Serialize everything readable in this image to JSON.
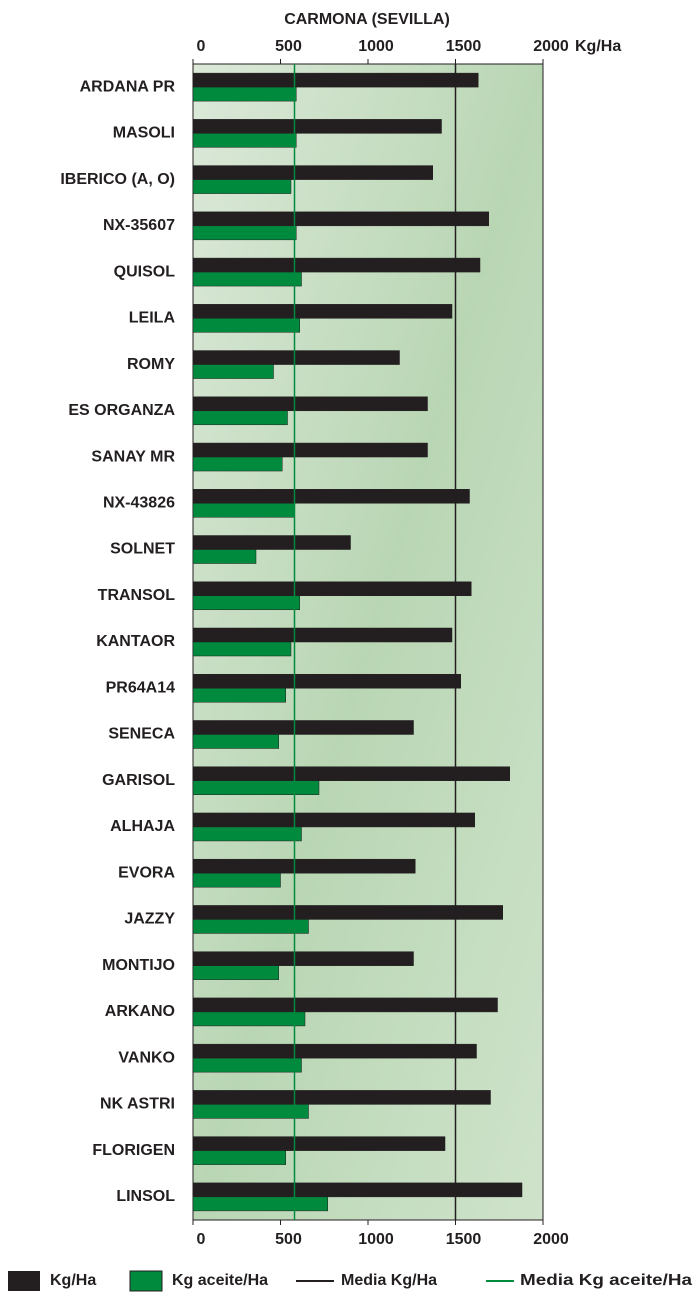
{
  "chart_data": {
    "type": "hbar",
    "title": "CARMONA (SEVILLA)",
    "x_unit": "Kg/Ha",
    "categories": [
      "ARDANA PR",
      "MASOLI",
      "IBERICO (A, O)",
      "NX-35607",
      "QUISOL",
      "LEILA",
      "ROMY",
      "ES ORGANZA",
      "SANAY MR",
      "NX-43826",
      "SOLNET",
      "TRANSOL",
      "KANTAOR",
      "PR64A14",
      "SENECA",
      "GARISOL",
      "ALHAJA",
      "EVORA",
      "JAZZY",
      "MONTIJO",
      "ARKANO",
      "VANKO",
      "NK ASTRI",
      "FLORIGEN",
      "LINSOL"
    ],
    "series": [
      {
        "name": "Kg/Ha",
        "color": "#231f20",
        "values": [
          1630,
          1420,
          1370,
          1690,
          1640,
          1480,
          1180,
          1340,
          1340,
          1580,
          900,
          1590,
          1480,
          1530,
          1260,
          1810,
          1610,
          1270,
          1770,
          1260,
          1740,
          1620,
          1700,
          1440,
          1880
        ]
      },
      {
        "name": "Kg aceite/Ha",
        "color": "#008a3e",
        "values": [
          590,
          590,
          560,
          590,
          620,
          610,
          460,
          540,
          510,
          580,
          360,
          610,
          560,
          530,
          490,
          720,
          620,
          500,
          660,
          490,
          640,
          620,
          660,
          530,
          770
        ]
      }
    ],
    "reference_lines": [
      {
        "name": "Media Kg/Ha",
        "value": 1500,
        "color": "#231f20"
      },
      {
        "name": "Media Kg aceite/Ha",
        "value": 580,
        "color": "#008a3e"
      }
    ],
    "xlim": [
      0,
      2000
    ],
    "xticks": [
      0,
      500,
      1000,
      1500,
      2000
    ],
    "grid": false
  }
}
